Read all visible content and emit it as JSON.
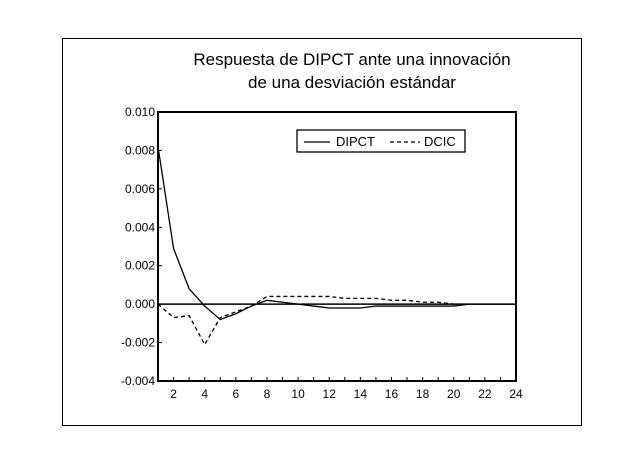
{
  "chart_data": {
    "type": "line",
    "title_line1": "Respuesta de DIPCT ante una innovación",
    "title_line2": "de una desviación estándar",
    "xlabel": "",
    "ylabel": "",
    "x": [
      1,
      2,
      3,
      4,
      5,
      6,
      7,
      8,
      9,
      10,
      11,
      12,
      13,
      14,
      15,
      16,
      17,
      18,
      19,
      20,
      21,
      22,
      23,
      24
    ],
    "xlim": [
      1,
      24
    ],
    "ylim": [
      -0.004,
      0.01
    ],
    "xticks": [
      "2",
      "4",
      "6",
      "8",
      "10",
      "12",
      "14",
      "16",
      "18",
      "20",
      "22",
      "24"
    ],
    "yticks": [
      "0.010",
      "0.008",
      "0.006",
      "0.004",
      "0.002",
      "0.000",
      "-0.002",
      "-0.004"
    ],
    "grid": false,
    "zero_line": true,
    "legend_position": "top-right",
    "series": [
      {
        "name": "DIPCT",
        "style": "solid",
        "values": [
          0.0082,
          0.0029,
          0.0008,
          -0.0001,
          -0.0008,
          -0.0005,
          -0.0001,
          0.0002,
          0.0001,
          0.0,
          -0.0001,
          -0.0002,
          -0.0002,
          -0.0002,
          -0.0001,
          -0.0001,
          -0.0001,
          -0.0001,
          -0.0001,
          -0.0001,
          0.0,
          0.0,
          0.0,
          0.0
        ]
      },
      {
        "name": "DCIC",
        "style": "dashed",
        "values": [
          0.0,
          -0.0007,
          -0.0006,
          -0.0021,
          -0.0007,
          -0.0004,
          -0.0001,
          0.0004,
          0.0004,
          0.0004,
          0.0004,
          0.0004,
          0.0003,
          0.0003,
          0.0003,
          0.0002,
          0.0002,
          0.0001,
          0.0001,
          0.0,
          0.0,
          0.0,
          0.0,
          0.0
        ]
      }
    ]
  }
}
